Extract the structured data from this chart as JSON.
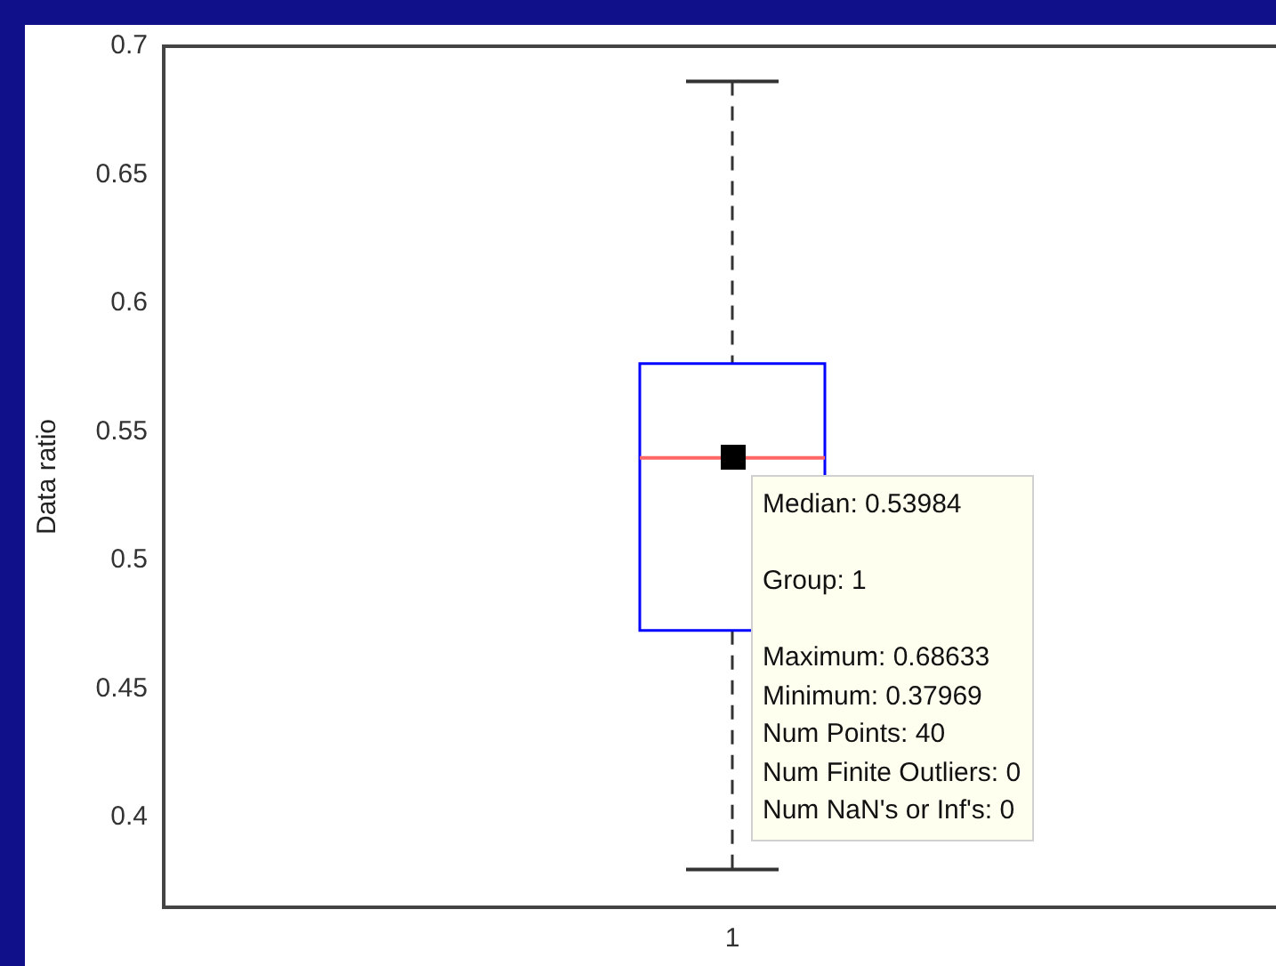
{
  "chart_data": {
    "type": "box",
    "ylabel": "Data ratio",
    "categories": [
      "1"
    ],
    "boxes": [
      {
        "low": 0.37969,
        "q1": 0.4727,
        "median": 0.53984,
        "q3": 0.5765,
        "high": 0.68633
      }
    ],
    "color": "#0000ff",
    "ylim": [
      0.365,
      0.7
    ],
    "yticks": [
      0.4,
      0.45,
      0.5,
      0.55,
      0.6,
      0.65,
      0.7
    ],
    "annotations": [
      {
        "text": "Median: 0.53984",
        "x": "1",
        "y": 0.53984
      },
      "Group: 1",
      "Maximum: 0.68633",
      "Minimum: 0.37969",
      "Num Points: 40",
      "Num Finite Outliers: 0",
      "Num NaN's or Inf's: 0"
    ]
  }
}
